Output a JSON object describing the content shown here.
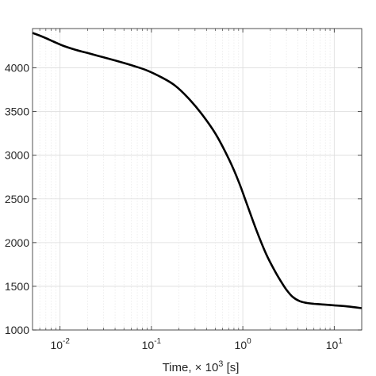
{
  "chart_data": {
    "type": "line",
    "title": "",
    "xlabel": {
      "prefix": "Time, × 10",
      "exponent": "3",
      "suffix": " [s]"
    },
    "ylabel": "",
    "x_scale": "log",
    "xlim": [
      0.005,
      20
    ],
    "ylim": [
      1000,
      4450
    ],
    "grid": true,
    "minor_grid_x": true,
    "x_ticks": [
      {
        "value": 0.01,
        "base": "10",
        "exp": "-2"
      },
      {
        "value": 0.1,
        "base": "10",
        "exp": "-1"
      },
      {
        "value": 1,
        "base": "10",
        "exp": "0"
      },
      {
        "value": 10,
        "base": "10",
        "exp": "1"
      }
    ],
    "y_ticks": [
      {
        "value": 1000,
        "label": "1000"
      },
      {
        "value": 1500,
        "label": "1500"
      },
      {
        "value": 2000,
        "label": "2000"
      },
      {
        "value": 2500,
        "label": "2500"
      },
      {
        "value": 3000,
        "label": "3000"
      },
      {
        "value": 3500,
        "label": "3500"
      },
      {
        "value": 4000,
        "label": "4000"
      }
    ],
    "series": [
      {
        "color": "#000000",
        "x": [
          0.005,
          0.0065,
          0.0085,
          0.011,
          0.015,
          0.02,
          0.03,
          0.045,
          0.065,
          0.09,
          0.13,
          0.18,
          0.25,
          0.35,
          0.5,
          0.7,
          0.9,
          1.1,
          1.4,
          1.8,
          2.2,
          2.6,
          3.0,
          3.5,
          4.2,
          5.0,
          6.0,
          8.0,
          10.0,
          14.0,
          20.0
        ],
        "y": [
          4400,
          4355,
          4300,
          4250,
          4205,
          4170,
          4120,
          4070,
          4020,
          3970,
          3890,
          3800,
          3660,
          3480,
          3250,
          2960,
          2700,
          2450,
          2150,
          1870,
          1690,
          1560,
          1460,
          1380,
          1330,
          1310,
          1300,
          1290,
          1282,
          1270,
          1250
        ]
      }
    ]
  }
}
